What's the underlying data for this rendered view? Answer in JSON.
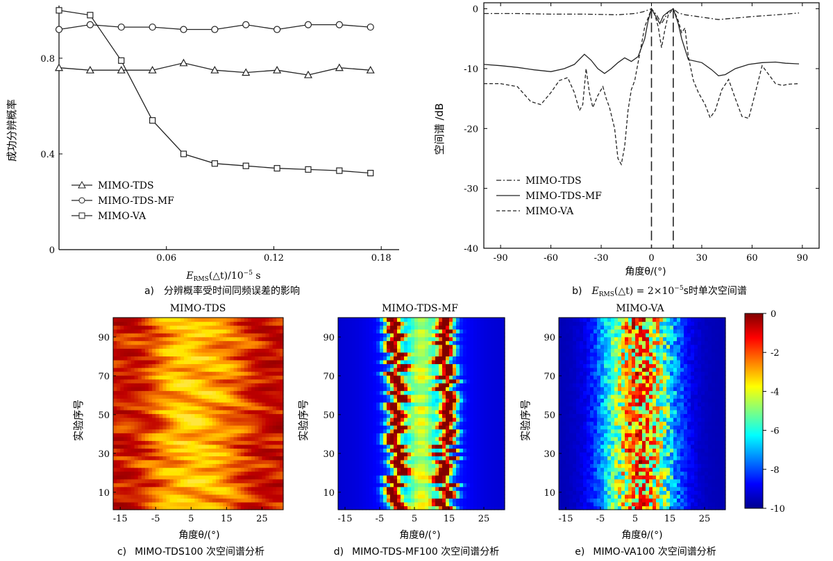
{
  "chart_data": [
    {
      "id": "a",
      "type": "line",
      "caption": "分辨概率受时间同频误差的影响",
      "caption_letter": "a)",
      "xlabel_main": "E",
      "xlabel_sub": "RMS",
      "xlabel_rest": "(△t)/10",
      "xlabel_exp": "−5",
      "xlabel_unit": " s",
      "ylabel": "成功分辨概率",
      "xlim": [
        0.0,
        0.19
      ],
      "ylim": [
        0.0,
        1.02
      ],
      "xticks": [
        0.06,
        0.12,
        0.18
      ],
      "xtick_labels": [
        "0.06",
        "0.12",
        "0.18"
      ],
      "yticks": [
        0,
        0.4,
        0.8
      ],
      "ytick_labels": [
        "0",
        "0.4",
        "0.8"
      ],
      "legend_position": "lower-left",
      "x": [
        0.0,
        0.0174,
        0.0348,
        0.0522,
        0.0696,
        0.087,
        0.1044,
        0.1218,
        0.1392,
        0.1566,
        0.174
      ],
      "series": [
        {
          "name": "MIMO-TDS",
          "marker": "triangle",
          "values": [
            0.76,
            0.75,
            0.75,
            0.75,
            0.78,
            0.75,
            0.74,
            0.75,
            0.73,
            0.76,
            0.75
          ]
        },
        {
          "name": "MIMO-TDS-MF",
          "marker": "circle",
          "values": [
            0.92,
            0.94,
            0.93,
            0.93,
            0.92,
            0.92,
            0.94,
            0.92,
            0.94,
            0.94,
            0.93
          ]
        },
        {
          "name": "MIMO-VA",
          "marker": "square",
          "values": [
            1.0,
            0.98,
            0.79,
            0.54,
            0.4,
            0.36,
            0.35,
            0.34,
            0.335,
            0.33,
            0.32
          ]
        }
      ]
    },
    {
      "id": "b",
      "type": "line",
      "caption_letter": "b)",
      "caption_main": "E",
      "caption_sub": "RMS",
      "caption_rest": "(△t) = 2×10",
      "caption_exp": "−5",
      "caption_tail": "s时单次空间谱",
      "xlabel": "角度θ/(°)",
      "ylabel": "空间谱 /dB",
      "xlim": [
        -100,
        100
      ],
      "ylim": [
        -40,
        1
      ],
      "xticks": [
        -90,
        -60,
        -30,
        0,
        30,
        60,
        90
      ],
      "xtick_labels": [
        "-90",
        "-60",
        "-30",
        "0",
        "30",
        "60",
        "90"
      ],
      "yticks": [
        0,
        -10,
        -20,
        -30,
        -40
      ],
      "ytick_labels": [
        "0",
        "-10",
        "-20",
        "-30",
        "-40"
      ],
      "legend_position": "lower-left",
      "markers_theta": [
        0,
        13
      ],
      "series": [
        {
          "name": "MIMO-TDS",
          "style": "dashdot",
          "x": [
            -100,
            -80,
            -60,
            -40,
            -20,
            -10,
            -5,
            -2,
            0,
            3,
            6,
            8,
            10,
            13,
            16,
            20,
            25,
            40,
            60,
            80,
            88
          ],
          "values": [
            -0.8,
            -0.8,
            -0.9,
            -0.9,
            -1.0,
            -0.8,
            -0.5,
            -0.2,
            0,
            -1.0,
            -2.5,
            -1.5,
            -0.5,
            0,
            -0.7,
            -1.0,
            -1.2,
            -1.8,
            -1.3,
            -0.9,
            -0.7
          ]
        },
        {
          "name": "MIMO-TDS-MF",
          "style": "solid",
          "x": [
            -100,
            -90,
            -80,
            -70,
            -60,
            -52,
            -46,
            -40,
            -36,
            -32,
            -28,
            -24,
            -20,
            -16,
            -12,
            -8,
            -4,
            -2,
            0,
            3,
            5,
            7,
            10,
            13,
            16,
            18,
            22,
            30,
            36,
            40,
            44,
            50,
            58,
            66,
            74,
            80,
            88
          ],
          "values": [
            -9.3,
            -9.5,
            -9.8,
            -10.2,
            -10.5,
            -10.0,
            -9.3,
            -7.6,
            -8.6,
            -10.0,
            -10.8,
            -10.0,
            -9.0,
            -8.2,
            -8.8,
            -8.0,
            -5.0,
            -2.0,
            0,
            -1.5,
            -2.5,
            -1.2,
            -0.5,
            0,
            -2.5,
            -5.0,
            -8.5,
            -9.0,
            -10.2,
            -11.2,
            -11.0,
            -10.0,
            -9.3,
            -9.0,
            -8.9,
            -9.1,
            -9.2
          ]
        },
        {
          "name": "MIMO-VA",
          "style": "dashed",
          "x": [
            -100,
            -90,
            -80,
            -72,
            -66,
            -60,
            -55,
            -50,
            -46,
            -43,
            -41,
            -39,
            -37,
            -35,
            -32,
            -29,
            -27,
            -25,
            -22,
            -20,
            -18,
            -16,
            -14,
            -12,
            -10,
            -8,
            -6,
            -4,
            -2,
            0,
            2,
            4,
            6,
            8,
            10,
            13,
            16,
            18,
            20,
            22,
            25,
            28,
            32,
            35,
            38,
            42,
            46,
            50,
            54,
            58,
            62,
            66,
            70,
            74,
            78,
            82,
            88
          ],
          "values": [
            -12.5,
            -12.5,
            -13.0,
            -15.5,
            -16.0,
            -14.0,
            -12.0,
            -11.5,
            -14.0,
            -17.0,
            -16.0,
            -10.0,
            -14.0,
            -16.5,
            -14.5,
            -13.0,
            -15.0,
            -16.5,
            -20.0,
            -25.0,
            -26.0,
            -23.0,
            -17.0,
            -13.5,
            -12.0,
            -9.0,
            -6.0,
            -3.0,
            -1.5,
            0,
            -1.0,
            -3.0,
            -6.5,
            -3.5,
            -1.0,
            0,
            -2.0,
            -4.0,
            -3.2,
            -8.0,
            -12.0,
            -14.0,
            -16.0,
            -18.2,
            -17.0,
            -13.5,
            -11.8,
            -15.0,
            -18.0,
            -18.3,
            -14.0,
            -9.5,
            -11.0,
            -12.5,
            -12.8,
            -12.6,
            -12.5
          ]
        }
      ]
    },
    {
      "id": "c",
      "type": "heatmap",
      "title": "MIMO-TDS",
      "caption_letter": "c)",
      "caption": "MIMO-TDS100 次空间谱分析",
      "xlabel": "角度θ/(°)",
      "ylabel": "实验序号",
      "xlim": [
        -17,
        31
      ],
      "ylim": [
        1,
        100
      ],
      "xticks": [
        -15,
        -5,
        5,
        15,
        25
      ],
      "xtick_labels": [
        "-15",
        "-5",
        "5",
        "15",
        "25"
      ],
      "yticks": [
        10,
        30,
        50,
        70,
        90
      ],
      "ytick_labels": [
        "10",
        "30",
        "50",
        "70",
        "90"
      ],
      "colormap": "hot"
    },
    {
      "id": "d",
      "type": "heatmap",
      "title": "MIMO-TDS-MF",
      "caption_letter": "d)",
      "caption": "MIMO-TDS-MF100 次空间谱分析",
      "xlabel": "角度θ/(°)",
      "ylabel": "实验序号",
      "xlim": [
        -17,
        31
      ],
      "ylim": [
        1,
        100
      ],
      "xticks": [
        -15,
        -5,
        5,
        15,
        25
      ],
      "xtick_labels": [
        "-15",
        "-5",
        "5",
        "15",
        "25"
      ],
      "yticks": [
        10,
        30,
        50,
        70,
        90
      ],
      "ytick_labels": [
        "10",
        "30",
        "50",
        "70",
        "90"
      ],
      "colormap": "jet"
    },
    {
      "id": "e",
      "type": "heatmap",
      "title": "MIMO-VA",
      "caption_letter": "e)",
      "caption": "MIMO-VA100 次空间谱分析",
      "xlabel": "角度θ/(°)",
      "ylabel": "实验序号",
      "xlim": [
        -17,
        31
      ],
      "ylim": [
        1,
        100
      ],
      "xticks": [
        -15,
        -5,
        5,
        15,
        25
      ],
      "xtick_labels": [
        "-15",
        "-5",
        "5",
        "15",
        "25"
      ],
      "yticks": [
        10,
        30,
        50,
        70,
        90
      ],
      "ytick_labels": [
        "10",
        "30",
        "50",
        "70",
        "90"
      ],
      "colormap": "jet",
      "colorbar": {
        "range": [
          -10,
          0
        ],
        "ticks": [
          0,
          -2,
          -4,
          -6,
          -8,
          -10
        ],
        "tick_labels": [
          "0",
          "-2",
          "-4",
          "-6",
          "-8",
          "-10"
        ]
      }
    }
  ]
}
